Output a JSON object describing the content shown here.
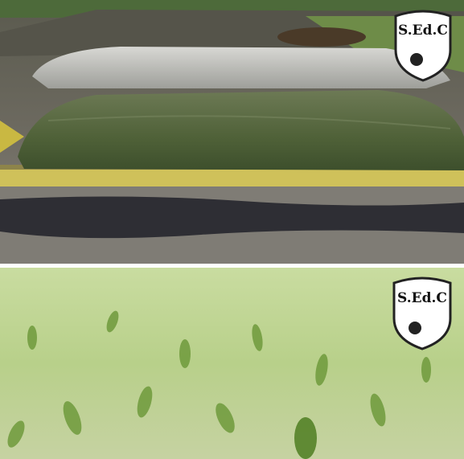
{
  "panels": [
    {
      "logo": "S.Ed.C"
    },
    {
      "logo": "S.Ed.C"
    }
  ]
}
